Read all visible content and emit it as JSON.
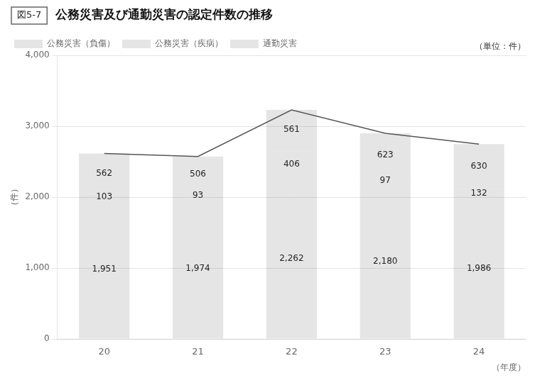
{
  "chart_data": {
    "type": "bar",
    "stacked": true,
    "title": "公務災害及び通勤災害の認定件数の推移",
    "annotations": [
      "図5-7",
      "（単位：件）"
    ],
    "xlabel": "（年度）",
    "ylabel": "（件）",
    "categories": [
      "20",
      "21",
      "22",
      "23",
      "24"
    ],
    "series": [
      {
        "name": "公務災害（負傷）",
        "values": [
          1951,
          1974,
          2262,
          2180,
          1986
        ],
        "value_labels": [
          "1,951",
          "1,974",
          "2,262",
          "2,180",
          "1,986"
        ],
        "data_labels": true
      },
      {
        "name": "公務災害（疾病）",
        "values": [
          103,
          93,
          406,
          97,
          132
        ],
        "data_labels": true
      },
      {
        "name": "通勤災害",
        "values": [
          562,
          506,
          561,
          623,
          630
        ],
        "data_labels": true
      },
      {
        "type": "line",
        "color": "#555555",
        "marker": "none",
        "values": [
          2616,
          2573,
          3229,
          2900,
          2748
        ]
      }
    ],
    "ylim": [
      0,
      4000
    ],
    "yticks": [
      0,
      {
        "value": 1000,
        "label": "1,000"
      },
      {
        "value": 2000,
        "label": "2,000"
      },
      {
        "value": 3000,
        "label": "3,000"
      },
      {
        "value": 4000,
        "label": "4,000"
      }
    ],
    "grid": true,
    "legend": "upper left"
  }
}
